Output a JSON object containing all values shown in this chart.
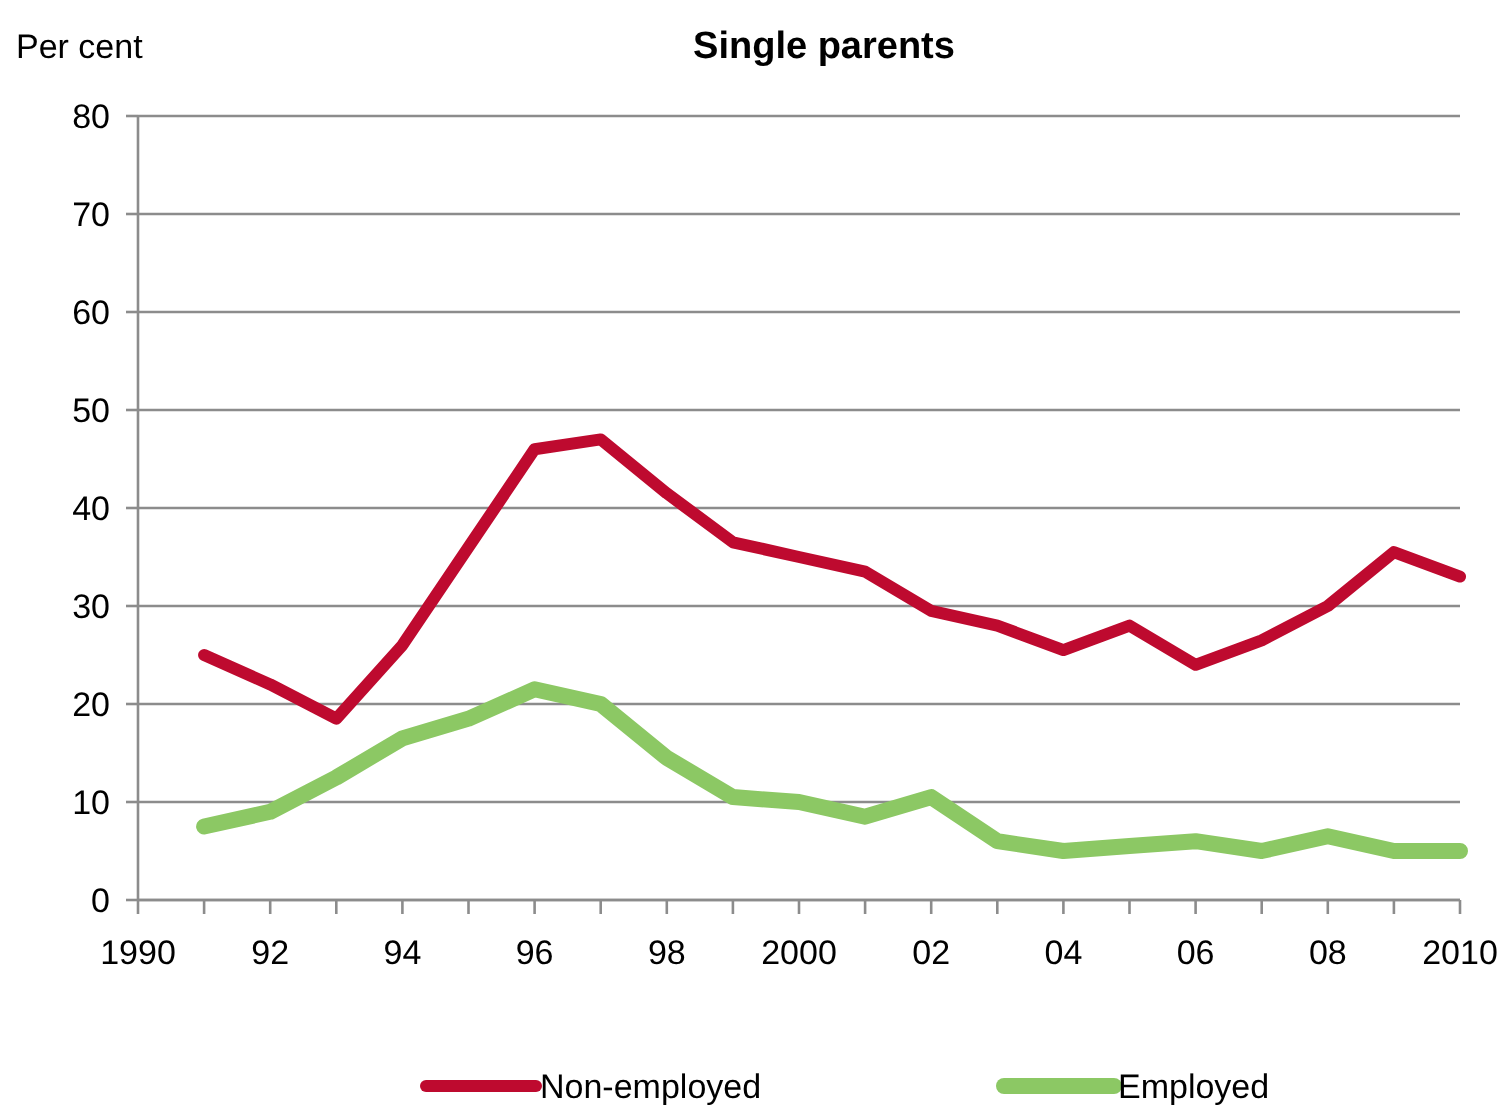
{
  "chart_data": {
    "type": "line",
    "title": "Single parents",
    "ylabel": "Per cent",
    "x": [
      1991,
      1992,
      1993,
      1994,
      1995,
      1996,
      1997,
      1998,
      1999,
      2000,
      2001,
      2002,
      2003,
      2004,
      2005,
      2006,
      2007,
      2008,
      2009,
      2010
    ],
    "series": [
      {
        "name": "Non-employed",
        "color": "#be0a2f",
        "values": [
          25,
          22,
          18.5,
          26,
          36,
          46,
          47,
          41.5,
          36.5,
          35,
          33.5,
          29.5,
          28,
          25.5,
          28,
          24,
          26.5,
          30,
          35.5,
          33
        ]
      },
      {
        "name": "Employed",
        "color": "#8cc864",
        "values": [
          7.5,
          9,
          12.5,
          16.5,
          18.5,
          21.5,
          20,
          14.5,
          10.5,
          10,
          8.5,
          10.5,
          6,
          5,
          5.5,
          6,
          5,
          6.5,
          5,
          5
        ]
      }
    ],
    "xlim": [
      1990,
      2010
    ],
    "xticks": [
      {
        "value": 1990,
        "label": "1990"
      },
      {
        "value": 1991,
        "label": null
      },
      {
        "value": 1992,
        "label": "92"
      },
      {
        "value": 1993,
        "label": null
      },
      {
        "value": 1994,
        "label": "94"
      },
      {
        "value": 1995,
        "label": null
      },
      {
        "value": 1996,
        "label": "96"
      },
      {
        "value": 1997,
        "label": null
      },
      {
        "value": 1998,
        "label": "98"
      },
      {
        "value": 1999,
        "label": null
      },
      {
        "value": 2000,
        "label": "2000"
      },
      {
        "value": 2001,
        "label": null
      },
      {
        "value": 2002,
        "label": "02"
      },
      {
        "value": 2003,
        "label": null
      },
      {
        "value": 2004,
        "label": "04"
      },
      {
        "value": 2005,
        "label": null
      },
      {
        "value": 2006,
        "label": "06"
      },
      {
        "value": 2007,
        "label": null
      },
      {
        "value": 2008,
        "label": "08"
      },
      {
        "value": 2009,
        "label": null
      },
      {
        "value": 2010,
        "label": "2010"
      }
    ],
    "ylim": [
      0,
      80
    ],
    "yticks": [
      0,
      10,
      20,
      30,
      40,
      50,
      60,
      70,
      80
    ],
    "grid": "y",
    "legend": "bottom",
    "marker": "none",
    "line_style": "solid"
  }
}
